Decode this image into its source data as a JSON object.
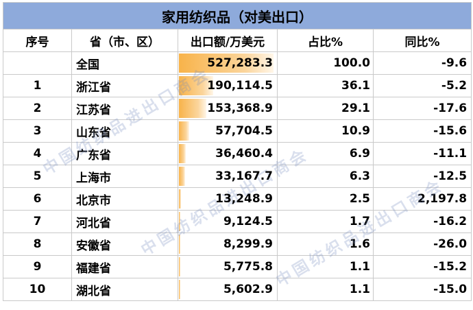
{
  "title": "家用纺织品（对美出口）",
  "headers": [
    "序号",
    "省（市、区）",
    "出口额/万美元",
    "占比%",
    "同比%"
  ],
  "rows": [
    {
      "rank": "",
      "province": "全国",
      "value": "527,283.3",
      "share": "100.0",
      "yoy": "-9.6",
      "bar": 1.0
    },
    {
      "rank": "1",
      "province": "浙江省",
      "value": "190,114.5",
      "share": "36.1",
      "yoy": "-5.2",
      "bar": 0.361
    },
    {
      "rank": "2",
      "province": "江苏省",
      "value": "153,368.9",
      "share": "29.1",
      "yoy": "-17.6",
      "bar": 0.291
    },
    {
      "rank": "3",
      "province": "山东省",
      "value": "57,704.5",
      "share": "10.9",
      "yoy": "-15.6",
      "bar": 0.109
    },
    {
      "rank": "4",
      "province": "广东省",
      "value": "36,460.4",
      "share": "6.9",
      "yoy": "-11.1",
      "bar": 0.069
    },
    {
      "rank": "5",
      "province": "上海市",
      "value": "33,167.7",
      "share": "6.3",
      "yoy": "-12.5",
      "bar": 0.063
    },
    {
      "rank": "6",
      "province": "北京市",
      "value": "13,248.9",
      "share": "2.5",
      "yoy": "2,197.8",
      "bar": 0.025
    },
    {
      "rank": "7",
      "province": "河北省",
      "value": "9,124.5",
      "share": "1.7",
      "yoy": "-16.2",
      "bar": 0.017
    },
    {
      "rank": "8",
      "province": "安徽省",
      "value": "8,299.9",
      "share": "1.6",
      "yoy": "-26.0",
      "bar": 0.016
    },
    {
      "rank": "9",
      "province": "福建省",
      "value": "5,775.8",
      "share": "1.1",
      "yoy": "-15.2",
      "bar": 0.011
    },
    {
      "rank": "10",
      "province": "湖北省",
      "value": "5,602.9",
      "share": "1.1",
      "yoy": "-15.0",
      "bar": 0.011
    }
  ],
  "watermark": "中国纺织品进出口商会",
  "colors": {
    "title_bg": "#8eaadb",
    "bar_start": "#f8b34a",
    "bar_end": "#fff6e8"
  }
}
